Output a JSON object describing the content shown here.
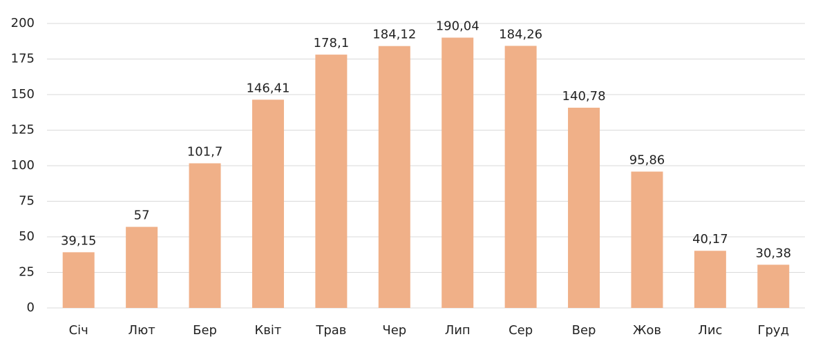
{
  "chart_data": {
    "type": "bar",
    "categories": [
      "Січ",
      "Лют",
      "Бер",
      "Квіт",
      "Трав",
      "Чер",
      "Лип",
      "Сер",
      "Вер",
      "Жов",
      "Лис",
      "Груд"
    ],
    "values": [
      39.15,
      57,
      101.7,
      146.41,
      178.1,
      184.12,
      190.04,
      184.26,
      140.78,
      95.86,
      40.17,
      30.38
    ],
    "value_labels": [
      "39,15",
      "57",
      "101,7",
      "146,41",
      "178,1",
      "184,12",
      "190,04",
      "184,26",
      "140,78",
      "95,86",
      "40,17",
      "30,38"
    ],
    "color": "#f0b088",
    "ylim": [
      0,
      200
    ],
    "yticks": [
      0,
      25,
      50,
      75,
      100,
      125,
      150,
      175,
      200
    ],
    "grid": true
  }
}
